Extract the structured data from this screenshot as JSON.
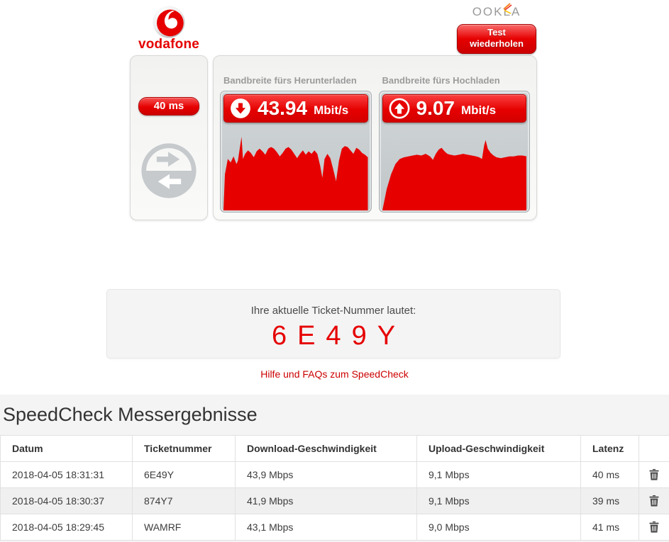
{
  "header": {
    "vodafone_text": "vodafone",
    "ookla_text": "OOKLA",
    "retest": {
      "line1": "Test",
      "line2": "wiederholen"
    }
  },
  "results": {
    "ping": {
      "value": "40 ms"
    },
    "download": {
      "label": "Bandbreite fürs Herunterladen",
      "value": "43.94",
      "unit": "Mbit/s"
    },
    "upload": {
      "label": "Bandbreite fürs Hochladen",
      "value": "9.07",
      "unit": "Mbit/s"
    }
  },
  "charts": {
    "download": {
      "type": "area",
      "color": "#e60000",
      "points": [
        [
          0,
          100
        ],
        [
          1,
          58
        ],
        [
          3,
          40
        ],
        [
          5,
          44
        ],
        [
          7,
          37
        ],
        [
          9,
          46
        ],
        [
          10,
          42
        ],
        [
          12.5,
          14
        ],
        [
          13.5,
          40
        ],
        [
          15,
          34
        ],
        [
          17,
          30
        ],
        [
          19,
          33
        ],
        [
          21,
          38
        ],
        [
          23,
          31
        ],
        [
          25,
          28
        ],
        [
          27,
          31
        ],
        [
          29,
          35
        ],
        [
          31,
          28
        ],
        [
          33,
          26
        ],
        [
          35,
          28
        ],
        [
          37,
          32
        ],
        [
          39,
          37
        ],
        [
          41,
          33
        ],
        [
          43,
          28
        ],
        [
          45,
          26
        ],
        [
          47,
          29
        ],
        [
          49,
          34
        ],
        [
          51,
          39
        ],
        [
          53,
          34
        ],
        [
          55,
          30
        ],
        [
          57,
          35
        ],
        [
          59,
          31
        ],
        [
          61,
          34
        ],
        [
          63,
          30
        ],
        [
          65,
          34
        ],
        [
          67,
          48
        ],
        [
          68.5,
          62
        ],
        [
          70,
          40
        ],
        [
          72,
          34
        ],
        [
          74,
          39
        ],
        [
          76,
          52
        ],
        [
          78,
          66
        ],
        [
          80,
          42
        ],
        [
          82,
          28
        ],
        [
          84,
          25
        ],
        [
          86,
          26
        ],
        [
          88,
          30
        ],
        [
          90,
          34
        ],
        [
          92,
          27
        ],
        [
          94,
          29
        ],
        [
          96,
          33
        ],
        [
          98,
          35
        ],
        [
          100,
          38
        ],
        [
          100,
          100
        ]
      ]
    },
    "upload": {
      "type": "area",
      "color": "#e60000",
      "points": [
        [
          0,
          100
        ],
        [
          3,
          75
        ],
        [
          6,
          58
        ],
        [
          9,
          46
        ],
        [
          12,
          40
        ],
        [
          15,
          38
        ],
        [
          18,
          37
        ],
        [
          21,
          36
        ],
        [
          24,
          35
        ],
        [
          27,
          36
        ],
        [
          30,
          34
        ],
        [
          33,
          37
        ],
        [
          35,
          41
        ],
        [
          37,
          34
        ],
        [
          39,
          29
        ],
        [
          41,
          27
        ],
        [
          43,
          31
        ],
        [
          45,
          34
        ],
        [
          47,
          35
        ],
        [
          50,
          36
        ],
        [
          53,
          35
        ],
        [
          56,
          34
        ],
        [
          59,
          35
        ],
        [
          62,
          36
        ],
        [
          65,
          37
        ],
        [
          67,
          38
        ],
        [
          69,
          40
        ],
        [
          70.5,
          24
        ],
        [
          71.5,
          18
        ],
        [
          73,
          28
        ],
        [
          75,
          33
        ],
        [
          77,
          36
        ],
        [
          79,
          38
        ],
        [
          82,
          39
        ],
        [
          85,
          38
        ],
        [
          88,
          37
        ],
        [
          91,
          37
        ],
        [
          94,
          36
        ],
        [
          97,
          36
        ],
        [
          100,
          37
        ],
        [
          100,
          100
        ]
      ]
    }
  },
  "ticket": {
    "label": "Ihre aktuelle Ticket-Nummer lautet:",
    "number": "6E49Y"
  },
  "help_link": {
    "text": "Hilfe und FAQs zum SpeedCheck"
  },
  "history": {
    "title": "SpeedCheck Messergebnisse",
    "columns": [
      "Datum",
      "Ticketnummer",
      "Download-Geschwindigkeit",
      "Upload-Geschwindigkeit",
      "Latenz"
    ],
    "rows": [
      {
        "datum": "2018-04-05 18:31:31",
        "ticket": "6E49Y",
        "download": "43,9 Mbps",
        "upload": "9,1 Mbps",
        "latenz": "40 ms"
      },
      {
        "datum": "2018-04-05 18:30:37",
        "ticket": "874Y7",
        "download": "41,9 Mbps",
        "upload": "9,1 Mbps",
        "latenz": "39 ms"
      },
      {
        "datum": "2018-04-05 18:29:45",
        "ticket": "WAMRF",
        "download": "43,1 Mbps",
        "upload": "9,0 Mbps",
        "latenz": "41 ms"
      }
    ]
  },
  "icons": {
    "ping": "bidirectional-arrows-icon",
    "download": "down-arrow-circle-icon",
    "upload": "up-arrow-circle-icon",
    "delete": "trash-icon"
  },
  "colors": {
    "vodafone_red": "#e60000",
    "link_red": "#cc0000",
    "section_bg": "#f4f4f4"
  }
}
